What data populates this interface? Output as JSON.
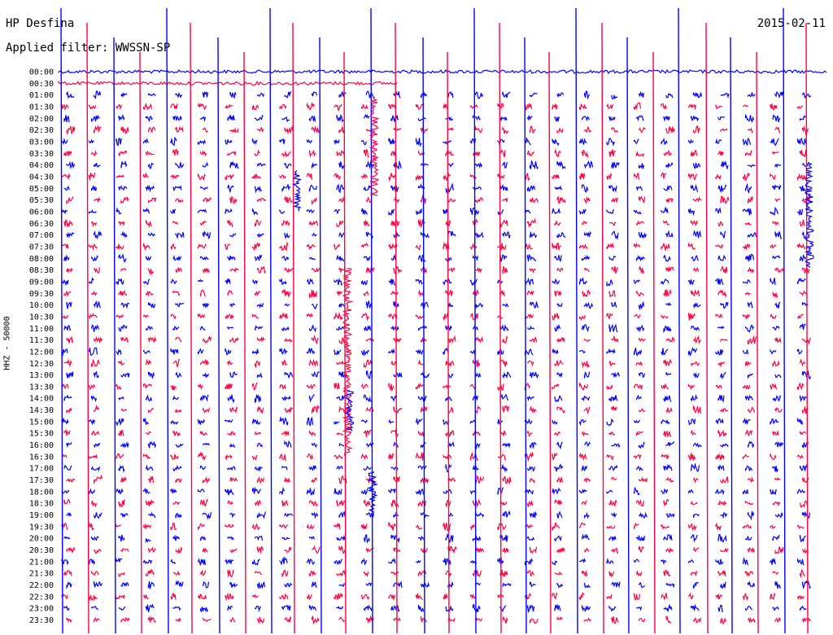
{
  "header": {
    "station": "HP Desfina",
    "date": "2015-02-11",
    "filter": "Applied filter: WWSSN-SP"
  },
  "chart_data": {
    "type": "helicorder",
    "title": "HP Desfina",
    "date": "2015-02-11",
    "filter": "WWSSN-SP",
    "ylabel": "HHZ - 50000",
    "row_labels": [
      "00:00",
      "00:30",
      "01:00",
      "01:30",
      "02:00",
      "02:30",
      "03:00",
      "03:30",
      "04:00",
      "04:30",
      "05:00",
      "05:30",
      "06:00",
      "06:30",
      "07:00",
      "07:30",
      "08:00",
      "08:30",
      "09:00",
      "09:30",
      "10:00",
      "10:30",
      "11:00",
      "11:30",
      "12:00",
      "12:30",
      "13:00",
      "13:30",
      "14:00",
      "14:30",
      "15:00",
      "15:30",
      "16:00",
      "16:30",
      "17:00",
      "17:30",
      "18:00",
      "18:30",
      "19:00",
      "19:30",
      "20:00",
      "20:30",
      "21:00",
      "21:30",
      "22:00",
      "22:30",
      "23:00",
      "23:30"
    ],
    "series_colors": [
      "#0000ff",
      "#ff0040"
    ],
    "minutes_per_row": 30
  }
}
